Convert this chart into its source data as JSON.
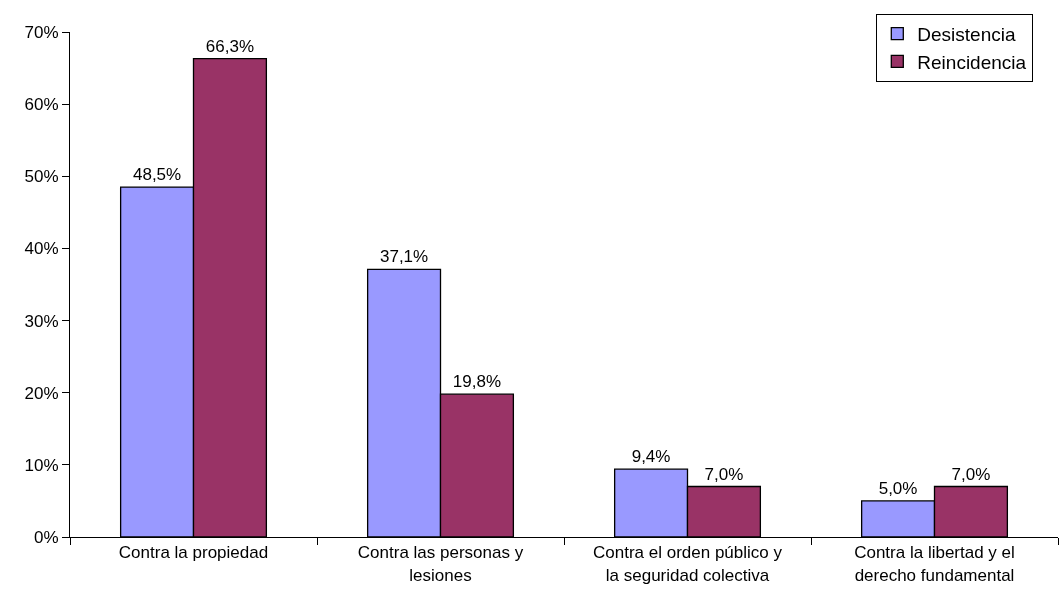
{
  "chart_data": {
    "type": "bar",
    "categories": [
      "Contra la propiedad",
      "Contra las personas y lesiones",
      "Contra el orden público y la seguridad colectiva",
      "Contra la libertad y el derecho fundamental"
    ],
    "series": [
      {
        "name": "Desistencia",
        "color": "#9999ff",
        "values": [
          48.5,
          37.1,
          9.4,
          5.0
        ],
        "value_labels": [
          "48,5%",
          "37,1%",
          "9,4%",
          "5,0%"
        ]
      },
      {
        "name": "Reincidencia",
        "color": "#993366",
        "values": [
          66.3,
          19.8,
          7.0,
          7.0
        ],
        "value_labels": [
          "66,3%",
          "19,8%",
          "7,0%",
          "7,0%"
        ]
      }
    ],
    "ylim": [
      0,
      70
    ],
    "yticks": [
      {
        "value": 0,
        "label": "0%"
      },
      {
        "value": 10,
        "label": "10%"
      },
      {
        "value": 20,
        "label": "20%"
      },
      {
        "value": 30,
        "label": "30%"
      },
      {
        "value": 40,
        "label": "40%"
      },
      {
        "value": 50,
        "label": "50%"
      },
      {
        "value": 60,
        "label": "60%"
      },
      {
        "value": 70,
        "label": "70%"
      }
    ],
    "legend": "top right"
  }
}
